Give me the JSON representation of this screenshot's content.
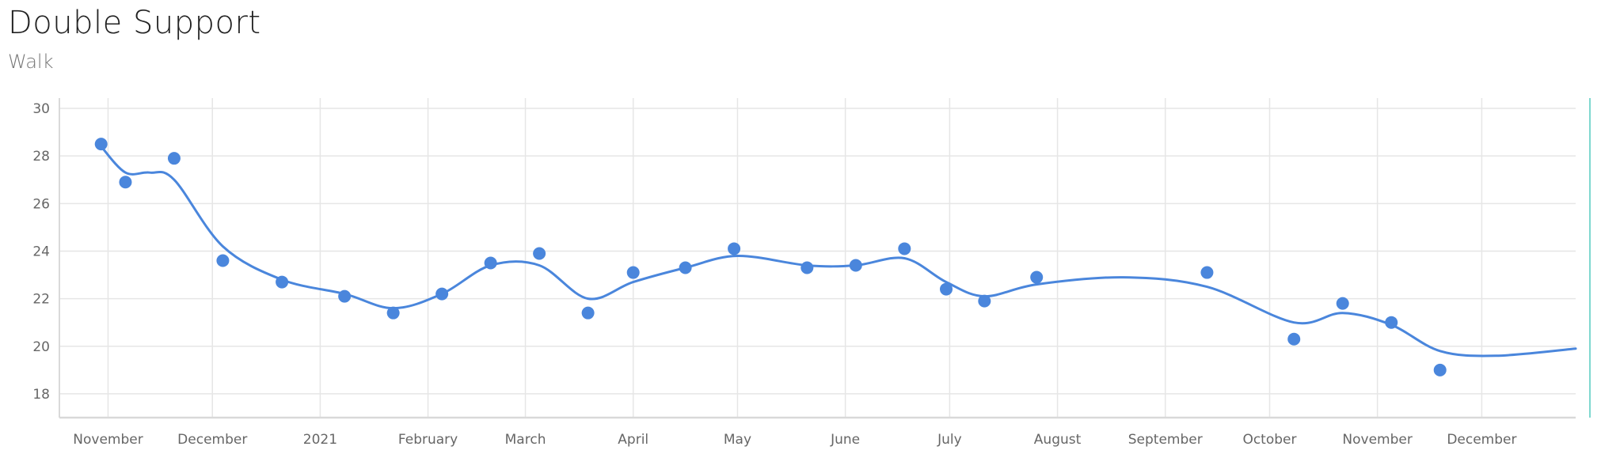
{
  "header": {
    "title": "Double Support",
    "subtitle": "Walk"
  },
  "colors": {
    "series": "#4a86dc",
    "grid": "#e6e6e6",
    "axis": "#d9d9d9",
    "accent_edge": "#7fd8cf"
  },
  "chart_data": {
    "type": "line",
    "title": "Double Support",
    "subtitle": "Walk",
    "ylim": [
      17,
      30.3
    ],
    "y_ticks": [
      18,
      20,
      22,
      24,
      26,
      28,
      30
    ],
    "x_range": [
      "2020-10-18",
      "2021-12-28"
    ],
    "x_ticks": [
      {
        "date": "2020-11-01",
        "label": "November"
      },
      {
        "date": "2020-12-01",
        "label": "December"
      },
      {
        "date": "2021-01-01",
        "label": "2021"
      },
      {
        "date": "2021-02-01",
        "label": "February"
      },
      {
        "date": "2021-03-01",
        "label": "March"
      },
      {
        "date": "2021-04-01",
        "label": "April"
      },
      {
        "date": "2021-05-01",
        "label": "May"
      },
      {
        "date": "2021-06-01",
        "label": "June"
      },
      {
        "date": "2021-07-01",
        "label": "July"
      },
      {
        "date": "2021-08-01",
        "label": "August"
      },
      {
        "date": "2021-09-01",
        "label": "September"
      },
      {
        "date": "2021-10-01",
        "label": "October"
      },
      {
        "date": "2021-11-01",
        "label": "November"
      },
      {
        "date": "2021-12-01",
        "label": "December"
      }
    ],
    "grid": true,
    "series": [
      {
        "points": [
          {
            "x": "2020-10-30",
            "y": 28.5
          },
          {
            "x": "2020-11-06",
            "y": 26.9
          },
          {
            "x": "2020-11-20",
            "y": 27.9
          },
          {
            "x": "2020-12-04",
            "y": 23.6
          },
          {
            "x": "2020-12-21",
            "y": 22.7
          },
          {
            "x": "2021-01-08",
            "y": 22.1
          },
          {
            "x": "2021-01-22",
            "y": 21.4
          },
          {
            "x": "2021-02-05",
            "y": 22.2
          },
          {
            "x": "2021-02-19",
            "y": 23.5
          },
          {
            "x": "2021-03-05",
            "y": 23.9
          },
          {
            "x": "2021-03-19",
            "y": 21.4
          },
          {
            "x": "2021-04-01",
            "y": 23.1
          },
          {
            "x": "2021-04-16",
            "y": 23.3
          },
          {
            "x": "2021-04-30",
            "y": 24.1
          },
          {
            "x": "2021-05-21",
            "y": 23.3
          },
          {
            "x": "2021-06-04",
            "y": 23.4
          },
          {
            "x": "2021-06-18",
            "y": 24.1
          },
          {
            "x": "2021-06-30",
            "y": 22.4
          },
          {
            "x": "2021-07-11",
            "y": 21.9
          },
          {
            "x": "2021-07-26",
            "y": 22.9
          },
          {
            "x": "2021-09-13",
            "y": 23.1
          },
          {
            "x": "2021-10-08",
            "y": 20.3
          },
          {
            "x": "2021-10-22",
            "y": 21.8
          },
          {
            "x": "2021-11-05",
            "y": 21.0
          },
          {
            "x": "2021-11-19",
            "y": 19.0
          }
        ],
        "trend": [
          {
            "x": "2020-10-30",
            "y": 28.4
          },
          {
            "x": "2020-11-06",
            "y": 27.3
          },
          {
            "x": "2020-11-13",
            "y": 27.3
          },
          {
            "x": "2020-11-20",
            "y": 27.0
          },
          {
            "x": "2020-12-04",
            "y": 24.2
          },
          {
            "x": "2020-12-21",
            "y": 22.8
          },
          {
            "x": "2021-01-08",
            "y": 22.2
          },
          {
            "x": "2021-01-22",
            "y": 21.6
          },
          {
            "x": "2021-02-05",
            "y": 22.2
          },
          {
            "x": "2021-02-19",
            "y": 23.4
          },
          {
            "x": "2021-03-05",
            "y": 23.4
          },
          {
            "x": "2021-03-19",
            "y": 22.0
          },
          {
            "x": "2021-04-01",
            "y": 22.7
          },
          {
            "x": "2021-04-16",
            "y": 23.3
          },
          {
            "x": "2021-05-01",
            "y": 23.8
          },
          {
            "x": "2021-05-21",
            "y": 23.4
          },
          {
            "x": "2021-06-04",
            "y": 23.4
          },
          {
            "x": "2021-06-18",
            "y": 23.7
          },
          {
            "x": "2021-06-30",
            "y": 22.7
          },
          {
            "x": "2021-07-11",
            "y": 22.1
          },
          {
            "x": "2021-07-26",
            "y": 22.6
          },
          {
            "x": "2021-08-20",
            "y": 22.9
          },
          {
            "x": "2021-09-13",
            "y": 22.5
          },
          {
            "x": "2021-10-08",
            "y": 21.0
          },
          {
            "x": "2021-10-22",
            "y": 21.4
          },
          {
            "x": "2021-11-05",
            "y": 20.9
          },
          {
            "x": "2021-11-19",
            "y": 19.8
          },
          {
            "x": "2021-12-05",
            "y": 19.6
          },
          {
            "x": "2021-12-28",
            "y": 19.9
          }
        ]
      }
    ]
  }
}
